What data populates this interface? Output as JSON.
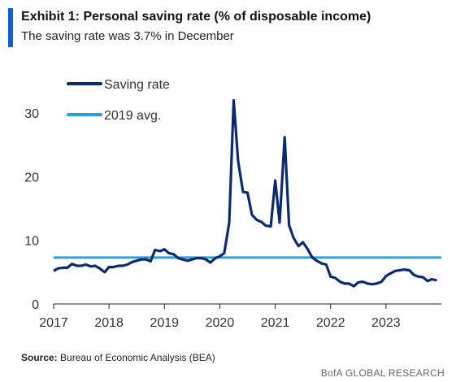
{
  "header": {
    "title": "Exhibit 1: Personal saving rate (% of disposable income)",
    "subtitle": "The saving rate was 3.7% in December"
  },
  "footer": {
    "source_label": "Source:",
    "source_text": "Bureau of Economic Analysis (BEA)",
    "brand": "BofA GLOBAL RESEARCH"
  },
  "colors": {
    "saving_rate": "#0b2a6f",
    "avg_2019": "#27a3dc",
    "accent": "#0b63d6"
  },
  "chart_data": {
    "type": "line",
    "title": "Exhibit 1: Personal saving rate (% of disposable income)",
    "subtitle": "The saving rate was 3.7% in December",
    "xlabel": "",
    "ylabel": "",
    "xlim": [
      2017.0,
      2024.0
    ],
    "ylim": [
      0,
      35
    ],
    "x_ticks": [
      "2017",
      "2018",
      "2019",
      "2020",
      "2021",
      "2022",
      "2023"
    ],
    "y_ticks": [
      0,
      10,
      20,
      30
    ],
    "grid": false,
    "legend": "top-left",
    "series": [
      {
        "name": "Saving rate",
        "x": [
          2017.0,
          2017.08,
          2017.17,
          2017.25,
          2017.33,
          2017.42,
          2017.5,
          2017.58,
          2017.67,
          2017.75,
          2017.83,
          2017.92,
          2018.0,
          2018.08,
          2018.17,
          2018.25,
          2018.33,
          2018.42,
          2018.5,
          2018.58,
          2018.67,
          2018.75,
          2018.83,
          2018.92,
          2019.0,
          2019.08,
          2019.17,
          2019.25,
          2019.33,
          2019.42,
          2019.5,
          2019.58,
          2019.67,
          2019.75,
          2019.83,
          2019.92,
          2020.0,
          2020.08,
          2020.17,
          2020.25,
          2020.33,
          2020.42,
          2020.5,
          2020.58,
          2020.67,
          2020.75,
          2020.83,
          2020.92,
          2021.0,
          2021.08,
          2021.17,
          2021.25,
          2021.33,
          2021.42,
          2021.5,
          2021.58,
          2021.67,
          2021.75,
          2021.83,
          2021.92,
          2022.0,
          2022.08,
          2022.17,
          2022.25,
          2022.33,
          2022.42,
          2022.5,
          2022.58,
          2022.67,
          2022.75,
          2022.83,
          2022.92,
          2023.0,
          2023.08,
          2023.17,
          2023.25,
          2023.33,
          2023.42,
          2023.5,
          2023.58,
          2023.67,
          2023.75,
          2023.83,
          2023.92
        ],
        "values": [
          5.2,
          5.6,
          5.7,
          5.7,
          6.3,
          6.0,
          6.0,
          6.2,
          5.9,
          6.0,
          5.6,
          5.0,
          5.8,
          5.8,
          6.0,
          6.0,
          6.2,
          6.6,
          6.8,
          7.0,
          7.0,
          6.7,
          8.5,
          8.3,
          8.6,
          8.0,
          7.8,
          7.2,
          7.0,
          6.8,
          7.0,
          7.2,
          7.2,
          7.0,
          6.5,
          7.2,
          7.5,
          8.0,
          12.8,
          32.0,
          22.5,
          17.6,
          17.5,
          14.0,
          13.2,
          12.9,
          12.3,
          12.2,
          19.4,
          12.8,
          26.2,
          12.4,
          10.4,
          9.1,
          9.7,
          8.7,
          7.3,
          6.8,
          6.4,
          6.2,
          4.3,
          4.1,
          3.5,
          3.2,
          3.2,
          2.8,
          3.4,
          3.5,
          3.2,
          3.1,
          3.2,
          3.5,
          4.4,
          4.8,
          5.2,
          5.3,
          5.4,
          5.3,
          4.6,
          4.3,
          4.2,
          3.6,
          3.9,
          3.7
        ]
      },
      {
        "name": "2019 avg.",
        "x": [
          2017.0,
          2024.0
        ],
        "values": [
          7.3,
          7.3
        ]
      }
    ]
  }
}
